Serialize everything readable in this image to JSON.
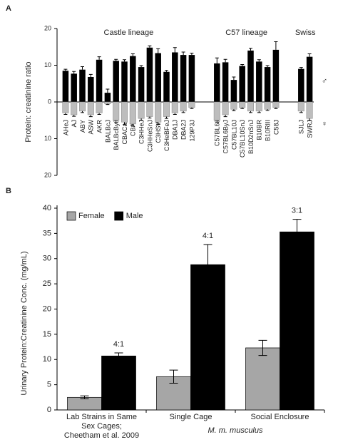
{
  "chart_data": [
    {
      "type": "diverging-bar",
      "panel_label": "A",
      "y_label": "Protein: creatinine ratio",
      "group_labels": [
        "Castle lineage",
        "C57 lineage",
        "Swiss"
      ],
      "male_symbol": "♂",
      "female_symbol": "♀",
      "categories": [
        "AHeJ",
        "AJ",
        "ABY",
        "ASW",
        "AKR",
        "BALBcJ",
        "BALBcByJ",
        "CBACaJ",
        "CBAJ",
        "C3HHeJ",
        "C3HHeSnJ",
        "C3HSW",
        "C3HeBFeJ",
        "DBA1J",
        "DBA2J",
        "129P3J",
        null,
        null,
        "C57BL6J",
        "C57BL6ByJ",
        "C57BL10J",
        "C57BL10SnJ",
        "B10D2nSnJ",
        "B10BR",
        "B10RIII",
        "C58J",
        null,
        null,
        "SJLJ",
        "SWRJ"
      ],
      "series": [
        {
          "color": "#000000",
          "values": [
            8.5,
            7.7,
            8.8,
            6.8,
            11.5,
            2.5,
            11.2,
            11.0,
            12.5,
            9.5,
            14.8,
            13.3,
            8.2,
            13.5,
            12.8,
            12.8,
            null,
            null,
            10.5,
            10.8,
            6.0,
            9.8,
            14.0,
            11.0,
            9.5,
            14.2,
            null,
            null,
            9.0,
            12.3
          ],
          "errors": [
            0.4,
            0.6,
            0.8,
            0.7,
            0.8,
            1.0,
            0.4,
            0.5,
            0.6,
            0.4,
            0.5,
            1.2,
            0.4,
            1.3,
            0.8,
            0.5,
            null,
            null,
            1.5,
            0.8,
            0.8,
            0.4,
            0.6,
            0.5,
            0.4,
            2.2,
            null,
            null,
            0.4,
            0.8
          ]
        },
        {
          "color": "#bdbdbd",
          "values": [
            -3.0,
            -3.5,
            -2.5,
            -3.5,
            -3.0,
            -0.5,
            -5.0,
            -5.5,
            -6.0,
            -4.5,
            -4.0,
            -5.5,
            -4.0,
            -3.0,
            -2.5,
            -1.5,
            null,
            null,
            -5.0,
            -3.5,
            -2.0,
            -1.5,
            -2.5,
            -2.5,
            -2.0,
            -1.5,
            null,
            null,
            -2.5,
            -4.5
          ],
          "errors": [
            0.4,
            0.4,
            0.4,
            0.5,
            0.4,
            0.2,
            0.6,
            0.7,
            0.6,
            0.5,
            0.4,
            0.6,
            0.5,
            0.4,
            0.4,
            0.3,
            null,
            null,
            0.5,
            0.5,
            0.4,
            0.3,
            0.4,
            0.4,
            0.3,
            0.3,
            null,
            null,
            0.4,
            0.6
          ]
        }
      ],
      "ylim": [
        -20,
        20
      ],
      "yticks": [
        {
          "value": -20,
          "label": "20"
        },
        {
          "value": -10,
          "label": "10"
        },
        0,
        10,
        20
      ]
    },
    {
      "type": "bar",
      "panel_label": "B",
      "y_label": "Urinary Protein:Creatinine Conc. (mg/mL)",
      "categories": [
        "Lab Strains in Same\nSex Cages;\nCheetham et al. 2009",
        "Single Cage",
        "Social Enclosure"
      ],
      "x_note": "M. m. musculus",
      "series": [
        {
          "name": "Female",
          "color": "#a6a6a6",
          "values": [
            2.5,
            6.6,
            12.3
          ],
          "errors": [
            0.3,
            1.3,
            1.5
          ]
        },
        {
          "name": "Male",
          "color": "#000000",
          "values": [
            10.7,
            28.8,
            35.3
          ],
          "errors": [
            0.6,
            4.0,
            2.5
          ]
        }
      ],
      "annotations": [
        "4:1",
        "4:1",
        "3:1"
      ],
      "ylim": [
        0,
        40
      ],
      "yticks": [
        0,
        5,
        10,
        15,
        20,
        25,
        30,
        35,
        40
      ],
      "legend": "upper left"
    }
  ]
}
